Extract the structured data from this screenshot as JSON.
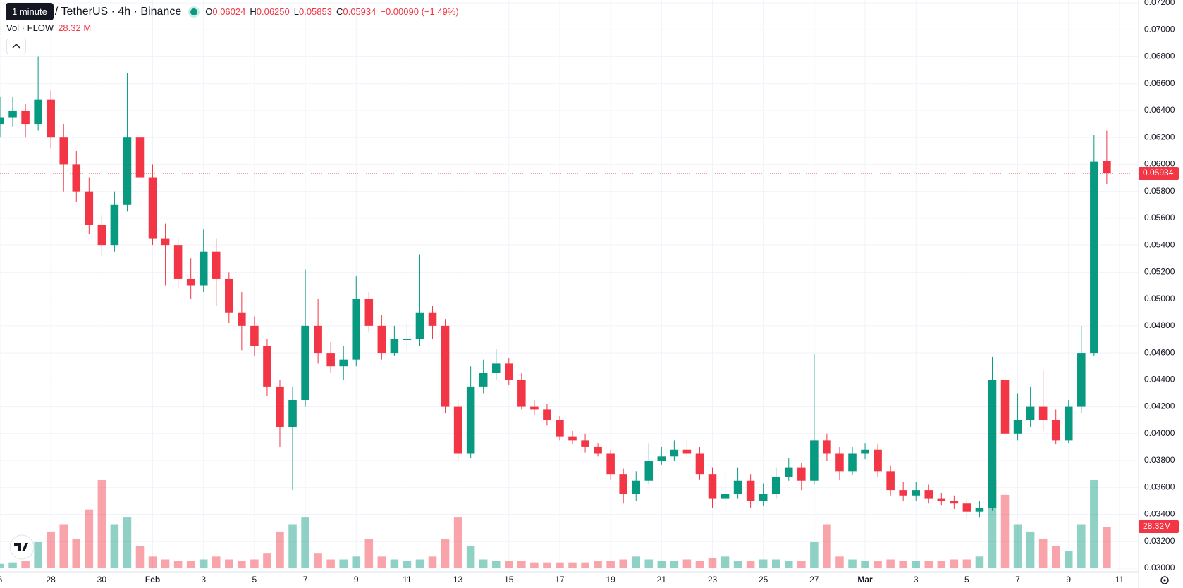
{
  "header": {
    "tooltip": "1 minute",
    "symbol": "/ TetherUS · 4h · Binance",
    "ohlc": [
      {
        "key": "O",
        "value": "0.06024"
      },
      {
        "key": "H",
        "value": "0.06250"
      },
      {
        "key": "L",
        "value": "0.05853"
      },
      {
        "key": "C",
        "value": "0.05934"
      }
    ],
    "change": "−0.00090 (−1.49%)",
    "volume_name": "Vol · FLOW",
    "volume_value": "28.32 M"
  },
  "chart_data": {
    "type": "candlestick",
    "open": [
      0.063,
      0.0635,
      0.064,
      0.063,
      0.0648,
      0.062,
      0.06,
      0.058,
      0.0555,
      0.054,
      0.057,
      0.062,
      0.059,
      0.0545,
      0.054,
      0.0515,
      0.051,
      0.0535,
      0.0515,
      0.049,
      0.048,
      0.0465,
      0.0435,
      0.0405,
      0.0425,
      0.048,
      0.046,
      0.045,
      0.0455,
      0.05,
      0.048,
      0.046,
      0.047,
      0.047,
      0.049,
      0.048,
      0.042,
      0.0385,
      0.0435,
      0.0445,
      0.0452,
      0.044,
      0.042,
      0.0418,
      0.041,
      0.0398,
      0.0395,
      0.039,
      0.0385,
      0.037,
      0.0355,
      0.0365,
      0.038,
      0.0383,
      0.0388,
      0.0385,
      0.037,
      0.0352,
      0.0355,
      0.0365,
      0.035,
      0.0355,
      0.0368,
      0.0375,
      0.0365,
      0.0395,
      0.0385,
      0.0372,
      0.0385,
      0.0388,
      0.0372,
      0.0358,
      0.0354,
      0.0358,
      0.0352,
      0.035,
      0.0348,
      0.0342,
      0.0345,
      0.044,
      0.04,
      0.041,
      0.042,
      0.041,
      0.0395,
      0.042,
      0.046,
      0.06024
    ],
    "high": [
      0.065,
      0.065,
      0.0645,
      0.068,
      0.0655,
      0.063,
      0.061,
      0.059,
      0.0562,
      0.058,
      0.0668,
      0.0645,
      0.06,
      0.0556,
      0.0545,
      0.053,
      0.0552,
      0.0545,
      0.052,
      0.0505,
      0.0487,
      0.047,
      0.044,
      0.0435,
      0.0522,
      0.05,
      0.0468,
      0.0465,
      0.0517,
      0.0505,
      0.0488,
      0.048,
      0.0482,
      0.0533,
      0.0495,
      0.0485,
      0.0425,
      0.045,
      0.0455,
      0.0463,
      0.0456,
      0.0445,
      0.0425,
      0.0422,
      0.0413,
      0.0402,
      0.04,
      0.0393,
      0.0388,
      0.0374,
      0.0372,
      0.0393,
      0.039,
      0.0395,
      0.0395,
      0.039,
      0.0375,
      0.037,
      0.0375,
      0.037,
      0.0363,
      0.0375,
      0.0382,
      0.0378,
      0.0459,
      0.04,
      0.039,
      0.039,
      0.0393,
      0.0392,
      0.0376,
      0.0364,
      0.0364,
      0.0362,
      0.0356,
      0.0354,
      0.0352,
      0.035,
      0.0457,
      0.0448,
      0.043,
      0.0435,
      0.0447,
      0.0418,
      0.0425,
      0.048,
      0.0622,
      0.0625
    ],
    "low": [
      0.062,
      0.0628,
      0.062,
      0.0625,
      0.0612,
      0.058,
      0.0572,
      0.0548,
      0.0532,
      0.0535,
      0.0565,
      0.0585,
      0.054,
      0.051,
      0.0508,
      0.05,
      0.0505,
      0.0495,
      0.0482,
      0.0462,
      0.0458,
      0.0428,
      0.039,
      0.0358,
      0.042,
      0.0452,
      0.0445,
      0.044,
      0.045,
      0.0475,
      0.0455,
      0.0458,
      0.0462,
      0.0465,
      0.047,
      0.0415,
      0.038,
      0.0382,
      0.043,
      0.044,
      0.0436,
      0.0418,
      0.0414,
      0.0406,
      0.0395,
      0.0392,
      0.0386,
      0.0383,
      0.0366,
      0.0348,
      0.035,
      0.0362,
      0.0377,
      0.038,
      0.0382,
      0.0366,
      0.0345,
      0.034,
      0.0352,
      0.0345,
      0.0346,
      0.0352,
      0.0365,
      0.0358,
      0.0362,
      0.038,
      0.0366,
      0.0369,
      0.0381,
      0.0368,
      0.0354,
      0.035,
      0.035,
      0.0348,
      0.0347,
      0.0344,
      0.0337,
      0.0338,
      0.0343,
      0.039,
      0.0395,
      0.0405,
      0.0402,
      0.0392,
      0.0393,
      0.0415,
      0.0458,
      0.05853
    ],
    "close": [
      0.0635,
      0.064,
      0.063,
      0.0648,
      0.062,
      0.06,
      0.058,
      0.0555,
      0.054,
      0.057,
      0.062,
      0.059,
      0.0545,
      0.054,
      0.0515,
      0.051,
      0.0535,
      0.0515,
      0.049,
      0.048,
      0.0465,
      0.0435,
      0.0405,
      0.0425,
      0.048,
      0.046,
      0.045,
      0.0455,
      0.05,
      0.048,
      0.046,
      0.047,
      0.047,
      0.049,
      0.048,
      0.042,
      0.0385,
      0.0435,
      0.0445,
      0.0452,
      0.044,
      0.042,
      0.0418,
      0.041,
      0.0398,
      0.0395,
      0.039,
      0.0385,
      0.037,
      0.0355,
      0.0365,
      0.038,
      0.0383,
      0.0388,
      0.0385,
      0.037,
      0.0352,
      0.0355,
      0.0365,
      0.035,
      0.0355,
      0.0368,
      0.0375,
      0.0365,
      0.0395,
      0.0385,
      0.0372,
      0.0385,
      0.0388,
      0.0372,
      0.0358,
      0.0354,
      0.0358,
      0.0352,
      0.035,
      0.0348,
      0.0342,
      0.0345,
      0.044,
      0.04,
      0.041,
      0.042,
      0.041,
      0.0395,
      0.042,
      0.046,
      0.0602,
      0.05934
    ],
    "volume": [
      3,
      4,
      5,
      18,
      25,
      30,
      20,
      40,
      60,
      30,
      35,
      15,
      8,
      6,
      5,
      5,
      6,
      8,
      6,
      5,
      6,
      10,
      25,
      30,
      35,
      10,
      6,
      6,
      8,
      20,
      8,
      6,
      5,
      6,
      8,
      20,
      35,
      15,
      6,
      5,
      5,
      5,
      4,
      4,
      4,
      4,
      4,
      5,
      5,
      6,
      8,
      6,
      5,
      5,
      6,
      5,
      7,
      8,
      5,
      5,
      6,
      6,
      5,
      5,
      18,
      30,
      8,
      6,
      5,
      5,
      6,
      5,
      5,
      5,
      5,
      6,
      6,
      8,
      60,
      50,
      30,
      25,
      20,
      15,
      12,
      30,
      60,
      28.32
    ],
    "volume_label": "28.32M",
    "last_price": 0.05934,
    "colors": {
      "up": "#089981",
      "down": "#f23645"
    },
    "grid": true,
    "xlim": [
      0,
      89.5
    ],
    "xticks": [
      {
        "value": 0,
        "label": "6"
      },
      {
        "value": 4,
        "label": "28"
      },
      {
        "value": 8,
        "label": "30"
      },
      {
        "value": 12,
        "label": "Feb"
      },
      {
        "value": 16,
        "label": "3"
      },
      {
        "value": 20,
        "label": "5"
      },
      {
        "value": 24,
        "label": "7"
      },
      {
        "value": 28,
        "label": "9"
      },
      {
        "value": 32,
        "label": "11"
      },
      {
        "value": 36,
        "label": "13"
      },
      {
        "value": 40,
        "label": "15"
      },
      {
        "value": 44,
        "label": "17"
      },
      {
        "value": 48,
        "label": "19"
      },
      {
        "value": 52,
        "label": "21"
      },
      {
        "value": 56,
        "label": "23"
      },
      {
        "value": 60,
        "label": "25"
      },
      {
        "value": 64,
        "label": "27"
      },
      {
        "value": 68,
        "label": "Mar"
      },
      {
        "value": 72,
        "label": "3"
      },
      {
        "value": 76,
        "label": "5"
      },
      {
        "value": 80,
        "label": "7"
      },
      {
        "value": 84,
        "label": "9"
      },
      {
        "value": 88,
        "label": "11"
      }
    ],
    "ylim": [
      0.03,
      0.072
    ],
    "yticks": [
      {
        "value": 0.03,
        "label": "0.03000"
      },
      {
        "value": 0.032,
        "label": "0.03200"
      },
      {
        "value": 0.034,
        "label": "0.03400"
      },
      {
        "value": 0.036,
        "label": "0.03600"
      },
      {
        "value": 0.038,
        "label": "0.03800"
      },
      {
        "value": 0.04,
        "label": "0.04000"
      },
      {
        "value": 0.042,
        "label": "0.04200"
      },
      {
        "value": 0.044,
        "label": "0.04400"
      },
      {
        "value": 0.046,
        "label": "0.04600"
      },
      {
        "value": 0.048,
        "label": "0.04800"
      },
      {
        "value": 0.05,
        "label": "0.05000"
      },
      {
        "value": 0.052,
        "label": "0.05200"
      },
      {
        "value": 0.054,
        "label": "0.05400"
      },
      {
        "value": 0.056,
        "label": "0.05600"
      },
      {
        "value": 0.058,
        "label": "0.05800"
      },
      {
        "value": 0.06,
        "label": "0.06000"
      },
      {
        "value": 0.062,
        "label": "0.06200"
      },
      {
        "value": 0.064,
        "label": "0.06400"
      },
      {
        "value": 0.066,
        "label": "0.06600"
      },
      {
        "value": 0.068,
        "label": "0.06800"
      },
      {
        "value": 0.07,
        "label": "0.07000"
      },
      {
        "value": 0.072,
        "label": "0.07200"
      }
    ]
  }
}
